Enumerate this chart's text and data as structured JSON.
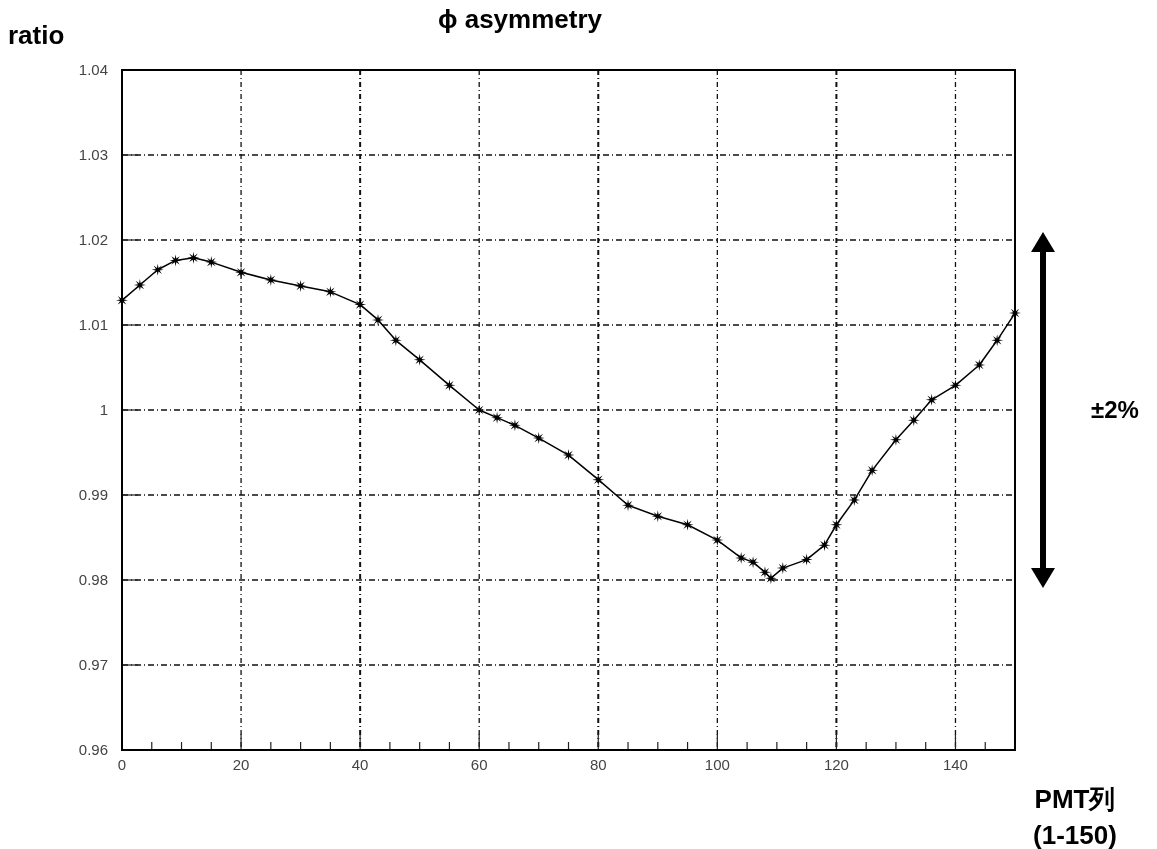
{
  "chart_data": {
    "type": "line",
    "title": "ϕ asymmetry",
    "xlabel": "PMT列 (1-150)",
    "ylabel": "ratio",
    "x": [
      0,
      3,
      6,
      9,
      12,
      15,
      20,
      25,
      30,
      35,
      40,
      43,
      46,
      50,
      55,
      60,
      63,
      66,
      70,
      75,
      80,
      85,
      90,
      95,
      100,
      104,
      106,
      108,
      109,
      111,
      115,
      118,
      120,
      123,
      126,
      130,
      133,
      136,
      140,
      144,
      147,
      150
    ],
    "series": [
      {
        "color": "#000000",
        "values": [
          1.0129,
          1.0147,
          1.0165,
          1.0176,
          1.0179,
          1.0174,
          1.0162,
          1.0153,
          1.0146,
          1.0139,
          1.0124,
          1.0106,
          1.0082,
          1.0059,
          1.0029,
          1.0,
          0.9991,
          0.9982,
          0.9967,
          0.9947,
          0.9918,
          0.9888,
          0.9875,
          0.9865,
          0.9847,
          0.9826,
          0.9821,
          0.9809,
          0.9802,
          0.9814,
          0.9824,
          0.9841,
          0.9865,
          0.9894,
          0.9929,
          0.9965,
          0.9988,
          1.0012,
          1.0029,
          1.0053,
          1.0082,
          1.0114
        ]
      }
    ],
    "xlim": [
      0,
      150
    ],
    "xticks": [
      0,
      {
        "value": 5,
        "label": null
      },
      {
        "value": 10,
        "label": null
      },
      {
        "value": 15,
        "label": null
      },
      20,
      {
        "value": 25,
        "label": null
      },
      {
        "value": 30,
        "label": null
      },
      {
        "value": 35,
        "label": null
      },
      40,
      {
        "value": 45,
        "label": null
      },
      {
        "value": 50,
        "label": null
      },
      {
        "value": 55,
        "label": null
      },
      60,
      {
        "value": 65,
        "label": null
      },
      {
        "value": 70,
        "label": null
      },
      {
        "value": 75,
        "label": null
      },
      80,
      {
        "value": 85,
        "label": null
      },
      {
        "value": 90,
        "label": null
      },
      {
        "value": 95,
        "label": null
      },
      100,
      {
        "value": 105,
        "label": null
      },
      {
        "value": 110,
        "label": null
      },
      {
        "value": 115,
        "label": null
      },
      120,
      {
        "value": 125,
        "label": null
      },
      {
        "value": 130,
        "label": null
      },
      {
        "value": 135,
        "label": null
      },
      140,
      {
        "value": 145,
        "label": null
      }
    ],
    "ylim": [
      0.96,
      1.04
    ],
    "yticks": [
      0.96,
      0.97,
      0.98,
      0.99,
      {
        "value": 1,
        "label": "1"
      },
      1.01,
      1.02,
      1.03,
      1.04
    ],
    "grid": true,
    "marker": "star",
    "line_style": "solid",
    "annotations": [
      "±2%"
    ]
  }
}
